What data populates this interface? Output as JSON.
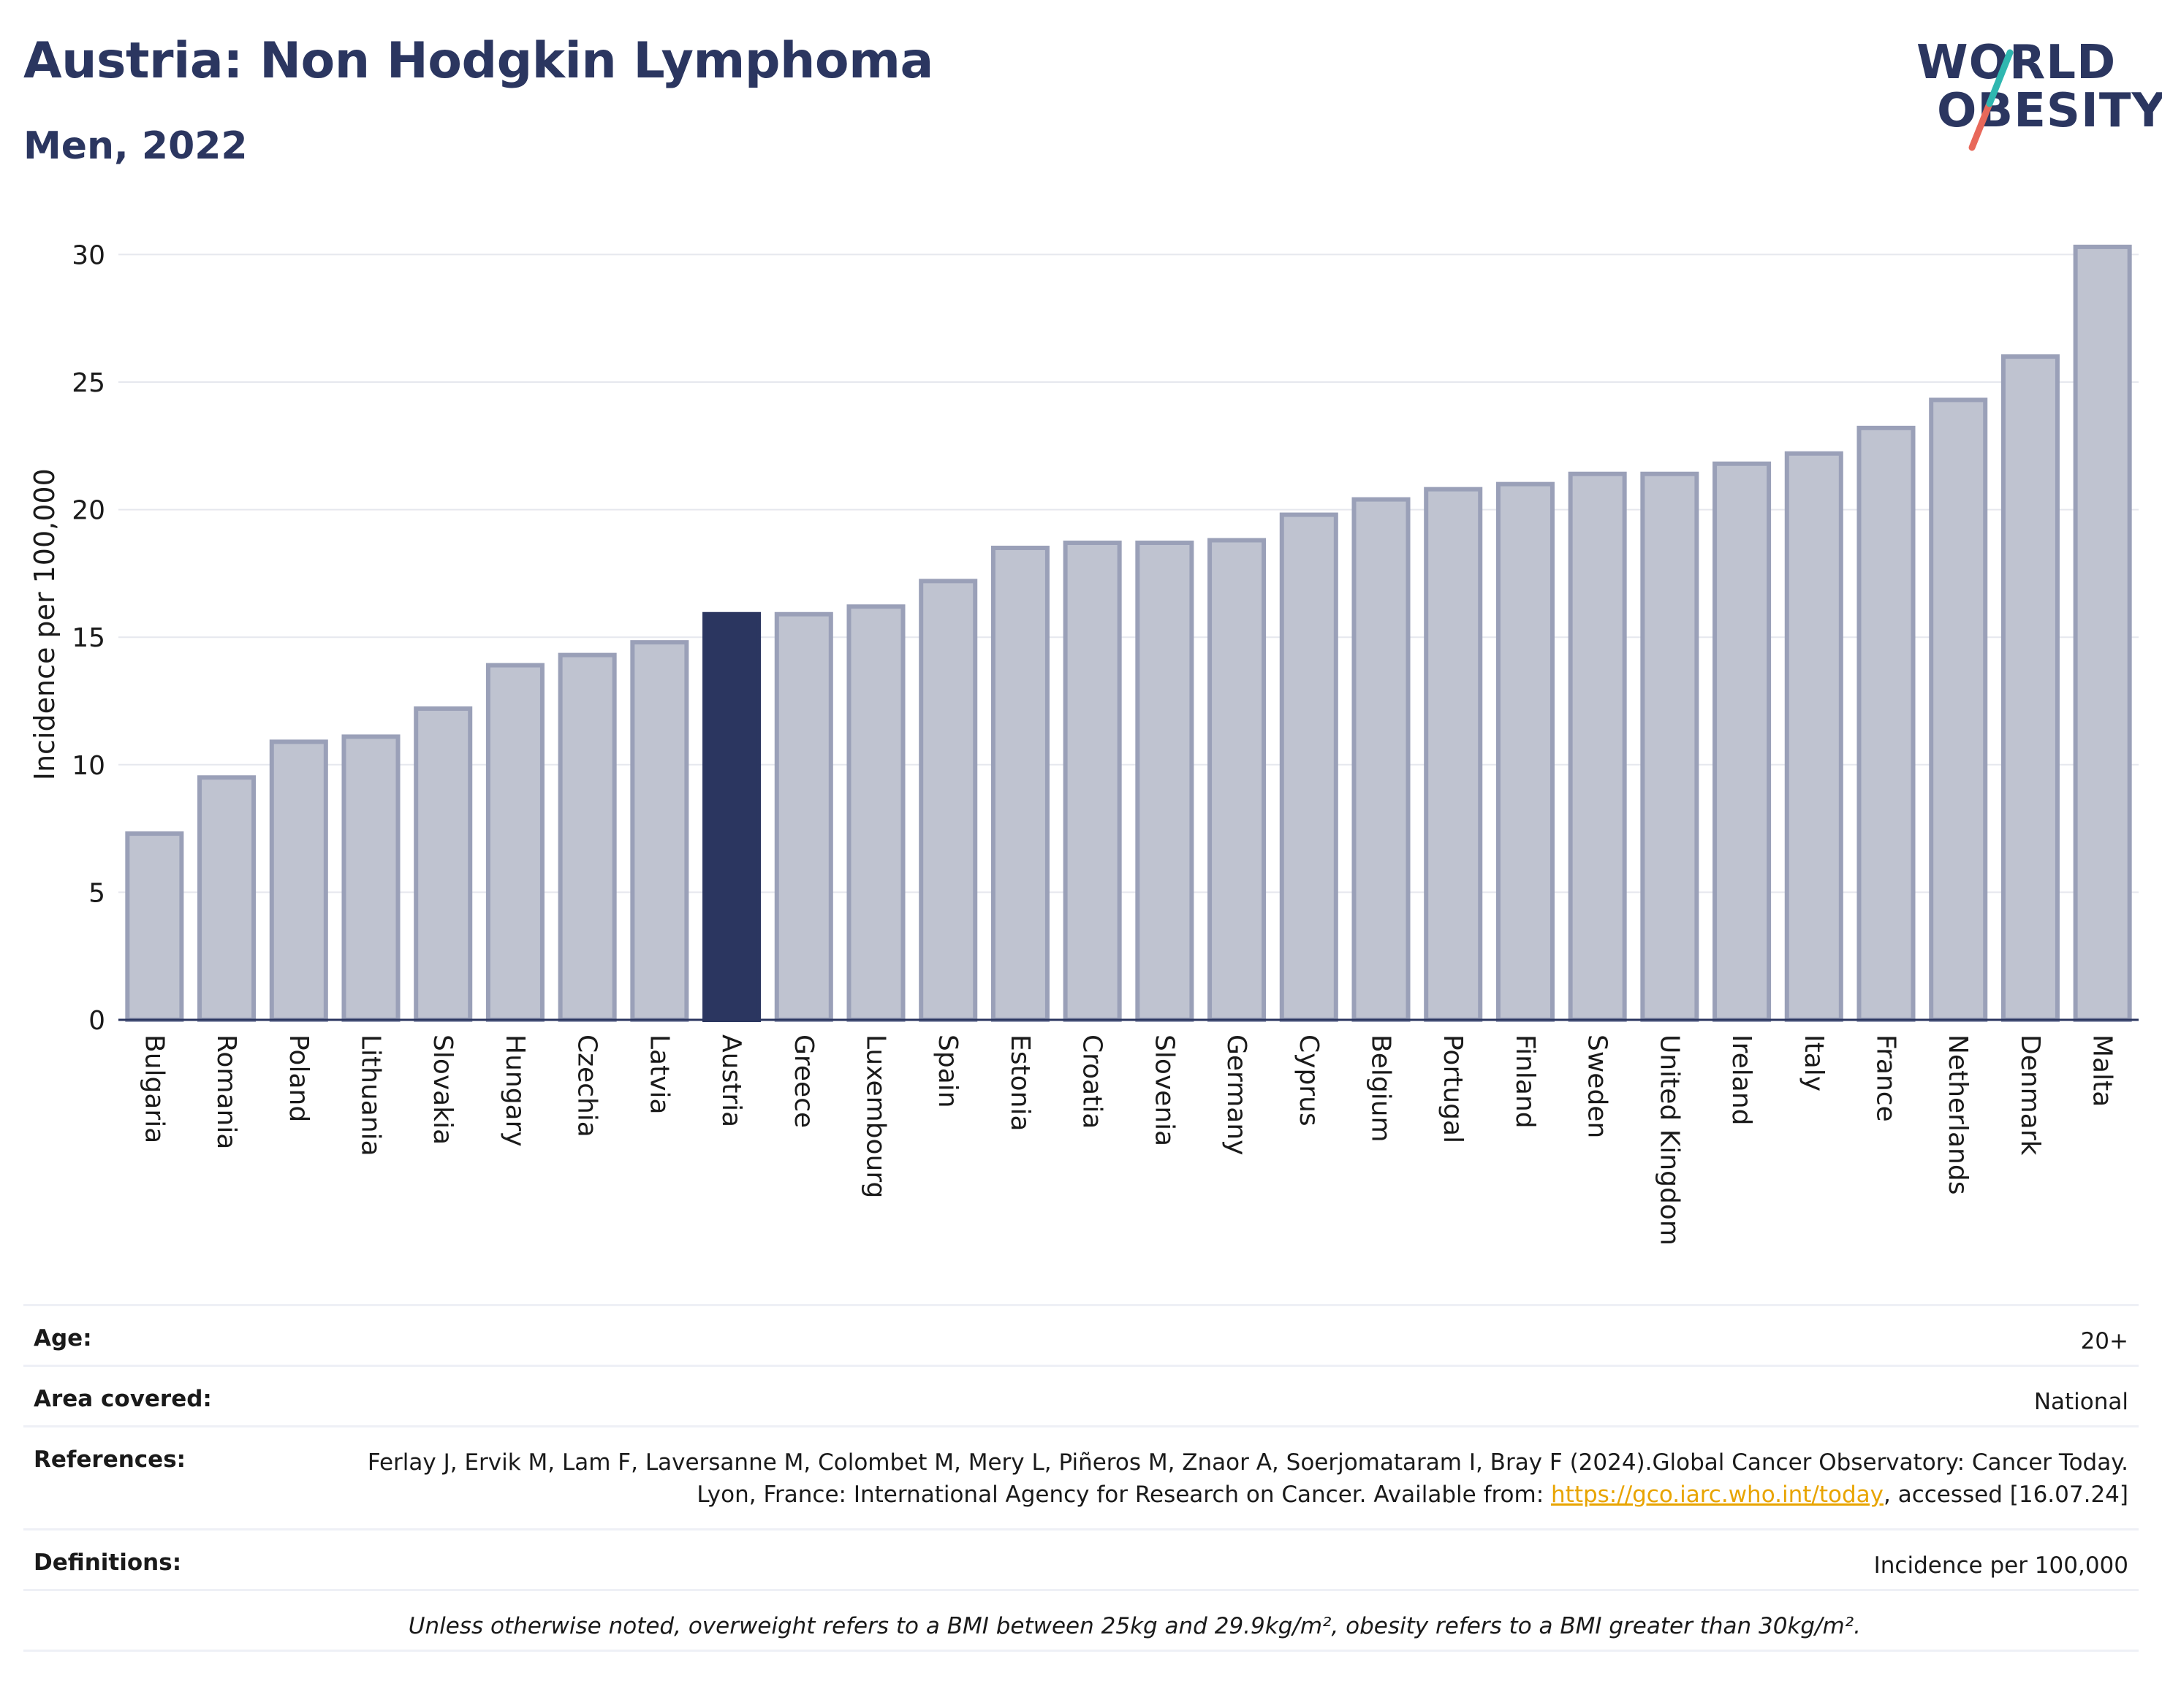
{
  "header": {
    "title": "Austria: Non Hodgkin Lymphoma",
    "subtitle": "Men, 2022",
    "logo_line1": "WORLD",
    "logo_line2": "OBESITY"
  },
  "colors": {
    "bar": "#bfc3d0",
    "bar_border": "#9aa0b8",
    "highlight": "#2b3660",
    "logo_teal": "#2fb7b0",
    "logo_coral": "#e8685a",
    "link": "#e8a400"
  },
  "chart_data": {
    "type": "bar",
    "categories": [
      "Bulgaria",
      "Romania",
      "Poland",
      "Lithuania",
      "Slovakia",
      "Hungary",
      "Czechia",
      "Latvia",
      "Austria",
      "Greece",
      "Luxembourg",
      "Spain",
      "Estonia",
      "Croatia",
      "Slovenia",
      "Germany",
      "Cyprus",
      "Belgium",
      "Portugal",
      "Finland",
      "Sweden",
      "United Kingdom",
      "Ireland",
      "Italy",
      "France",
      "Netherlands",
      "Denmark",
      "Malta"
    ],
    "values": [
      7.3,
      9.5,
      10.9,
      11.1,
      12.2,
      13.9,
      14.3,
      14.8,
      15.9,
      15.9,
      16.2,
      17.2,
      18.5,
      18.7,
      18.7,
      18.8,
      19.8,
      20.4,
      20.8,
      21.0,
      21.4,
      21.4,
      21.8,
      22.2,
      23.2,
      24.3,
      26.0,
      30.3
    ],
    "highlight": "Austria",
    "ylabel": "Incidence per 100,000",
    "xlabel": "",
    "ylim": [
      0,
      31.5
    ],
    "yticks": [
      0,
      5,
      10,
      15,
      20,
      25,
      30
    ],
    "grid": true
  },
  "info": {
    "age_label": "Age:",
    "age_value": "20+",
    "area_label": "Area covered:",
    "area_value": "National",
    "ref_label": "References:",
    "ref_text_1": "Ferlay J, Ervik M, Lam F, Laversanne M, Colombet M, Mery L, Piñeros M, Znaor A, Soerjomataram I, Bray F (2024).Global Cancer Observatory: Cancer Today. Lyon, France: International Agency for Research on Cancer. Available from: ",
    "ref_link": "https://gco.iarc.who.int/today",
    "ref_text_2": ", accessed [16.07.24]",
    "def_label": "Definitions:",
    "def_value": "Incidence per 100,000",
    "note": "Unless otherwise noted, overweight refers to a BMI between 25kg and 29.9kg/m², obesity refers to a BMI greater than 30kg/m²."
  }
}
